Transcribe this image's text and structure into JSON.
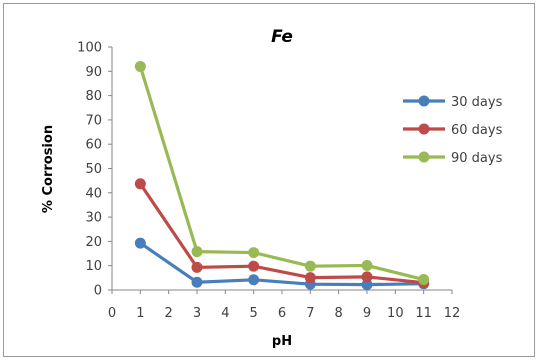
{
  "chart_data": {
    "type": "line",
    "title": "Fe",
    "xlabel": "pH",
    "ylabel": "% Corrosion",
    "xlim": [
      0,
      12
    ],
    "ylim": [
      0,
      100
    ],
    "x_ticks": [
      0,
      1,
      2,
      3,
      4,
      5,
      6,
      7,
      8,
      9,
      10,
      11,
      12
    ],
    "y_ticks": [
      0,
      10,
      20,
      30,
      40,
      50,
      60,
      70,
      80,
      90,
      100
    ],
    "grid": false,
    "legend_position": "right",
    "x": [
      1,
      3,
      5,
      7,
      9,
      11
    ],
    "series": [
      {
        "name": "30 days",
        "color": "#4a7ebb",
        "values": [
          19.3,
          3.2,
          4.2,
          2.4,
          2.2,
          2.6
        ]
      },
      {
        "name": "60 days",
        "color": "#be4b48",
        "values": [
          43.7,
          9.3,
          9.8,
          5.1,
          5.4,
          3.0
        ]
      },
      {
        "name": "90 days",
        "color": "#98b954",
        "values": [
          92.0,
          15.8,
          15.4,
          9.8,
          10.1,
          4.3
        ]
      }
    ]
  }
}
